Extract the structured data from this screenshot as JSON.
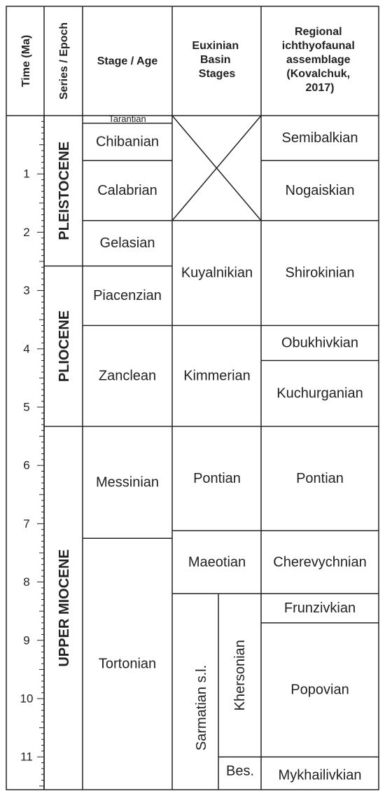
{
  "headers": {
    "time": "Time (Ma)",
    "series": "Series / Epoch",
    "stage": "Stage / Age",
    "euxinian": [
      "Euxinian",
      "Basin",
      "Stages"
    ],
    "regional": [
      "Regional",
      "ichthyofaunal",
      "assemblage",
      "(Kovalchuk,",
      "2017)"
    ]
  },
  "time_axis": {
    "min_ma": 0,
    "max_ma": 11.5,
    "labels": [
      "1",
      "2",
      "3",
      "4",
      "5",
      "6",
      "7",
      "8",
      "9",
      "10",
      "11"
    ]
  },
  "epochs": [
    {
      "name": "PLEISTOCENE",
      "from_ma": 0,
      "to_ma": 2.58
    },
    {
      "name": "PLIOCENE",
      "from_ma": 2.58,
      "to_ma": 5.33
    },
    {
      "name": "UPPER MIOCENE",
      "from_ma": 5.33,
      "to_ma": 11.63
    }
  ],
  "stages": [
    {
      "name": "Tarantian",
      "from_ma": 0,
      "to_ma": 0.13,
      "small": true
    },
    {
      "name": "Chibanian",
      "from_ma": 0.13,
      "to_ma": 0.77
    },
    {
      "name": "Calabrian",
      "from_ma": 0.77,
      "to_ma": 1.8
    },
    {
      "name": "Gelasian",
      "from_ma": 1.8,
      "to_ma": 2.58
    },
    {
      "name": "Piacenzian",
      "from_ma": 2.58,
      "to_ma": 3.6
    },
    {
      "name": "Zanclean",
      "from_ma": 3.6,
      "to_ma": 5.33
    },
    {
      "name": "Messinian",
      "from_ma": 5.33,
      "to_ma": 7.25
    },
    {
      "name": "Tortonian",
      "from_ma": 7.25,
      "to_ma": 11.63
    }
  ],
  "euxinian": {
    "empty_interval": {
      "from_ma": 0,
      "to_ma": 1.8
    },
    "stages": [
      {
        "name": "Kuyalnikian",
        "from_ma": 1.8,
        "to_ma": 3.6
      },
      {
        "name": "Kimmerian",
        "from_ma": 3.6,
        "to_ma": 5.33
      },
      {
        "name": "Pontian",
        "from_ma": 5.33,
        "to_ma": 7.12
      },
      {
        "name": "Maeotian",
        "from_ma": 7.12,
        "to_ma": 8.2
      }
    ],
    "sarmatian": {
      "name": "Sarmatian s.l.",
      "from_ma": 8.2,
      "to_ma": 11.63
    },
    "sub_stages": [
      {
        "name": "Khersonian",
        "from_ma": 8.2,
        "to_ma": 11.0,
        "vertical": true
      },
      {
        "name": "Bes.",
        "from_ma": 11.0,
        "to_ma": 11.63
      }
    ]
  },
  "regional": [
    {
      "name": "Semibalkian",
      "from_ma": 0,
      "to_ma": 0.77
    },
    {
      "name": "Nogaiskian",
      "from_ma": 0.77,
      "to_ma": 1.8
    },
    {
      "name": "Shirokinian",
      "from_ma": 1.8,
      "to_ma": 3.6
    },
    {
      "name": "Obukhivkian",
      "from_ma": 3.6,
      "to_ma": 4.2
    },
    {
      "name": "Kuchurganian",
      "from_ma": 4.2,
      "to_ma": 5.33
    },
    {
      "name": "Pontian",
      "from_ma": 5.33,
      "to_ma": 7.12
    },
    {
      "name": "Cherevychnian",
      "from_ma": 7.12,
      "to_ma": 8.2
    },
    {
      "name": "Frunzivkian",
      "from_ma": 8.2,
      "to_ma": 8.7
    },
    {
      "name": "Popovian",
      "from_ma": 8.7,
      "to_ma": 11.0
    },
    {
      "name": "Mykhailivkian",
      "from_ma": 11.0,
      "to_ma": 11.63
    }
  ]
}
